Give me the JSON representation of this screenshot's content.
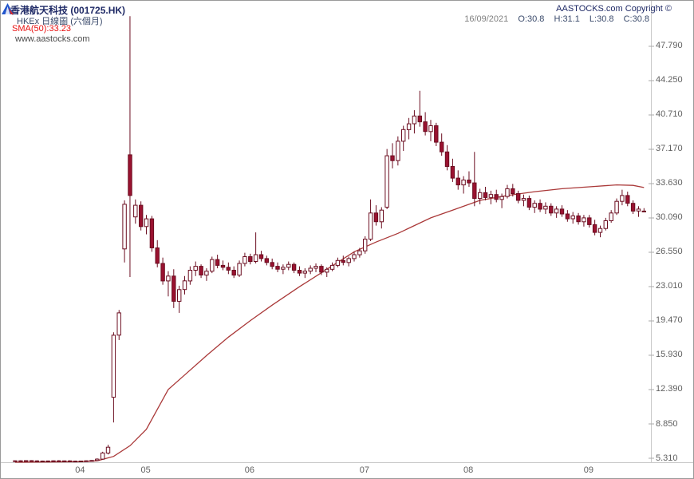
{
  "header": {
    "title": "香港航天科技 (001725.HK)",
    "subtitle": "HKEx 日線圖 (六個月)",
    "sma_label": "SMA(50):33.23",
    "watermark": "www.aastocks.com",
    "copyright": "AASTOCKS.com Copyright ©",
    "date": "16/09/2021",
    "ohlc": {
      "open": "O:30.8",
      "high": "H:31.1",
      "low": "L:30.8",
      "close": "C:30.8"
    }
  },
  "colors": {
    "up_fill": "#ffffff",
    "down_fill": "#9a1230",
    "outline": "#6b0d20",
    "sma_line": "#aa3939",
    "sma_label": "#e81010",
    "axis_text": "#5f5f5f",
    "plot_border": "#c9c9c9",
    "tick_mark": "#aaaaaa",
    "title_text": "#1f2a66"
  },
  "axes": {
    "y_ticks": [
      "47.790",
      "44.250",
      "40.710",
      "37.170",
      "33.630",
      "30.090",
      "26.550",
      "23.010",
      "19.470",
      "15.930",
      "12.390",
      "8.850",
      "5.310"
    ],
    "x_ticks": [
      {
        "label": "04",
        "index": 12
      },
      {
        "label": "05",
        "index": 24
      },
      {
        "label": "06",
        "index": 43
      },
      {
        "label": "07",
        "index": 64
      },
      {
        "label": "08",
        "index": 83
      },
      {
        "label": "09",
        "index": 105
      }
    ]
  },
  "chart_data": {
    "type": "candlestick",
    "title": "香港航天科技 (001725.HK)",
    "subtitle": "HKEx 日線圖 (六個月)",
    "indicator": {
      "name": "SMA(50)",
      "value": 33.23
    },
    "last_quote": {
      "date": "16/09/2021",
      "open": 30.8,
      "high": 31.1,
      "low": 30.8,
      "close": 30.8
    },
    "y_range": [
      4.9,
      50.9
    ],
    "y_tick_values": [
      47.79,
      44.25,
      40.71,
      37.17,
      33.63,
      30.09,
      26.55,
      23.01,
      19.47,
      15.93,
      12.39,
      8.85,
      5.31
    ],
    "x_month_starts": [
      {
        "month": "04",
        "index": 12
      },
      {
        "month": "05",
        "index": 24
      },
      {
        "month": "06",
        "index": 43
      },
      {
        "month": "07",
        "index": 64
      },
      {
        "month": "08",
        "index": 83
      },
      {
        "month": "09",
        "index": 105
      }
    ],
    "candles_ohlc": [
      [
        5.02,
        5.08,
        4.97,
        5.05
      ],
      [
        5.05,
        5.1,
        4.99,
        5.03
      ],
      [
        5.03,
        5.09,
        4.98,
        5.06
      ],
      [
        5.06,
        5.11,
        5.0,
        5.04
      ],
      [
        5.04,
        5.09,
        4.98,
        5.02
      ],
      [
        5.02,
        5.07,
        4.96,
        5.0
      ],
      [
        5.0,
        5.06,
        4.95,
        5.03
      ],
      [
        5.03,
        5.08,
        4.97,
        5.05
      ],
      [
        5.05,
        5.11,
        4.99,
        5.02
      ],
      [
        5.02,
        5.07,
        4.96,
        5.04
      ],
      [
        5.04,
        5.09,
        4.98,
        5.01
      ],
      [
        5.01,
        5.06,
        4.95,
        4.99
      ],
      [
        4.99,
        5.05,
        4.94,
        5.02
      ],
      [
        5.02,
        5.08,
        4.97,
        5.05
      ],
      [
        5.05,
        5.12,
        5.0,
        5.08
      ],
      [
        5.08,
        5.3,
        5.03,
        5.22
      ],
      [
        5.22,
        5.98,
        5.18,
        5.85
      ],
      [
        5.85,
        6.7,
        5.7,
        6.45
      ],
      [
        11.6,
        18.3,
        9.0,
        18.0
      ],
      [
        18.0,
        20.6,
        17.5,
        20.3
      ],
      [
        26.9,
        31.9,
        25.5,
        31.5
      ],
      [
        36.6,
        50.9,
        24.0,
        32.4
      ],
      [
        30.2,
        32.0,
        29.5,
        31.4
      ],
      [
        31.4,
        31.8,
        28.8,
        29.2
      ],
      [
        29.2,
        30.4,
        28.4,
        30.0
      ],
      [
        30.0,
        30.3,
        26.6,
        27.0
      ],
      [
        27.0,
        27.8,
        25.0,
        25.4
      ],
      [
        25.4,
        26.0,
        23.2,
        23.6
      ],
      [
        23.6,
        24.6,
        22.0,
        24.1
      ],
      [
        24.1,
        24.8,
        20.8,
        21.5
      ],
      [
        21.5,
        23.1,
        20.3,
        22.7
      ],
      [
        22.7,
        24.1,
        22.2,
        23.6
      ],
      [
        23.6,
        25.1,
        23.2,
        24.7
      ],
      [
        24.7,
        25.6,
        24.1,
        25.1
      ],
      [
        25.1,
        25.3,
        23.9,
        24.2
      ],
      [
        24.2,
        24.9,
        23.6,
        24.6
      ],
      [
        24.6,
        26.1,
        24.4,
        25.8
      ],
      [
        25.8,
        26.3,
        24.9,
        25.2
      ],
      [
        25.2,
        25.7,
        24.7,
        25.0
      ],
      [
        25.0,
        25.5,
        24.3,
        24.7
      ],
      [
        24.7,
        25.1,
        23.9,
        24.2
      ],
      [
        24.2,
        25.7,
        24.0,
        25.4
      ],
      [
        25.4,
        26.5,
        25.1,
        26.1
      ],
      [
        26.1,
        26.4,
        25.3,
        25.6
      ],
      [
        25.6,
        28.6,
        25.4,
        26.3
      ],
      [
        26.3,
        26.7,
        25.6,
        25.9
      ],
      [
        25.9,
        26.2,
        25.2,
        25.5
      ],
      [
        25.5,
        25.9,
        24.8,
        25.1
      ],
      [
        25.1,
        25.5,
        24.5,
        24.8
      ],
      [
        24.8,
        25.3,
        24.3,
        25.0
      ],
      [
        25.0,
        25.6,
        24.7,
        25.3
      ],
      [
        25.3,
        25.5,
        24.4,
        24.7
      ],
      [
        24.7,
        25.1,
        24.1,
        24.4
      ],
      [
        24.4,
        24.9,
        23.9,
        24.6
      ],
      [
        24.6,
        25.2,
        24.3,
        24.9
      ],
      [
        24.9,
        25.4,
        24.5,
        25.1
      ],
      [
        25.1,
        25.3,
        24.2,
        24.5
      ],
      [
        24.5,
        25.0,
        24.0,
        24.8
      ],
      [
        24.8,
        25.5,
        24.6,
        25.2
      ],
      [
        25.2,
        26.0,
        25.0,
        25.7
      ],
      [
        25.7,
        26.2,
        25.2,
        25.5
      ],
      [
        25.5,
        26.1,
        25.1,
        25.9
      ],
      [
        25.9,
        26.6,
        25.6,
        26.3
      ],
      [
        26.3,
        27.0,
        26.0,
        26.7
      ],
      [
        26.7,
        28.2,
        26.4,
        27.9
      ],
      [
        27.9,
        32.0,
        27.7,
        30.6
      ],
      [
        30.6,
        31.4,
        29.3,
        29.7
      ],
      [
        29.7,
        31.2,
        29.0,
        30.9
      ],
      [
        31.2,
        37.2,
        31.0,
        36.5
      ],
      [
        36.5,
        37.8,
        35.2,
        36.0
      ],
      [
        36.0,
        38.5,
        35.5,
        38.0
      ],
      [
        38.0,
        39.6,
        37.0,
        39.2
      ],
      [
        39.2,
        40.4,
        38.2,
        39.8
      ],
      [
        39.8,
        41.2,
        38.8,
        40.6
      ],
      [
        40.6,
        43.2,
        39.5,
        40.0
      ],
      [
        40.0,
        41.0,
        38.6,
        39.0
      ],
      [
        39.0,
        40.2,
        38.0,
        39.6
      ],
      [
        39.6,
        39.9,
        37.5,
        37.9
      ],
      [
        37.9,
        38.8,
        36.5,
        36.9
      ],
      [
        36.9,
        37.6,
        35.0,
        35.4
      ],
      [
        35.4,
        36.2,
        33.8,
        34.2
      ],
      [
        34.2,
        35.0,
        33.0,
        33.5
      ],
      [
        33.5,
        34.4,
        32.6,
        34.0
      ],
      [
        34.0,
        34.9,
        33.3,
        33.7
      ],
      [
        33.7,
        36.9,
        31.3,
        32.1
      ],
      [
        32.1,
        33.1,
        31.5,
        32.7
      ],
      [
        32.7,
        33.3,
        31.9,
        32.2
      ],
      [
        32.2,
        32.9,
        31.5,
        32.5
      ],
      [
        32.5,
        33.0,
        31.7,
        32.0
      ],
      [
        32.0,
        32.6,
        31.1,
        32.3
      ],
      [
        32.3,
        33.5,
        32.1,
        33.1
      ],
      [
        33.1,
        33.6,
        32.3,
        32.6
      ],
      [
        32.6,
        32.9,
        31.6,
        31.9
      ],
      [
        31.9,
        32.5,
        31.3,
        32.1
      ],
      [
        32.1,
        32.4,
        30.9,
        31.2
      ],
      [
        31.2,
        31.9,
        30.6,
        31.6
      ],
      [
        31.6,
        32.0,
        30.7,
        31.0
      ],
      [
        31.0,
        31.7,
        30.5,
        31.3
      ],
      [
        31.3,
        31.6,
        30.3,
        30.6
      ],
      [
        30.6,
        31.3,
        30.1,
        31.0
      ],
      [
        31.0,
        31.4,
        30.2,
        30.5
      ],
      [
        30.5,
        30.9,
        29.7,
        30.0
      ],
      [
        30.0,
        30.7,
        29.5,
        30.3
      ],
      [
        30.3,
        30.6,
        29.4,
        29.7
      ],
      [
        29.7,
        30.4,
        29.2,
        30.1
      ],
      [
        30.1,
        30.4,
        29.1,
        29.4
      ],
      [
        29.4,
        29.9,
        28.3,
        28.6
      ],
      [
        28.6,
        29.3,
        28.1,
        29.0
      ],
      [
        29.0,
        30.1,
        28.8,
        29.8
      ],
      [
        29.8,
        30.9,
        29.6,
        30.6
      ],
      [
        30.6,
        32.1,
        30.4,
        31.8
      ],
      [
        31.8,
        33.0,
        31.4,
        32.4
      ],
      [
        32.4,
        32.8,
        31.3,
        31.6
      ],
      [
        31.6,
        31.9,
        30.5,
        30.8
      ],
      [
        30.8,
        31.3,
        30.2,
        31.0
      ],
      [
        30.8,
        31.1,
        30.8,
        30.8
      ]
    ],
    "sma50_points": [
      [
        0,
        4.9
      ],
      [
        12,
        4.95
      ],
      [
        15,
        5.05
      ],
      [
        18,
        5.5
      ],
      [
        21,
        6.6
      ],
      [
        24,
        8.3
      ],
      [
        28,
        12.4
      ],
      [
        31,
        13.9
      ],
      [
        35,
        15.9
      ],
      [
        39,
        17.8
      ],
      [
        43,
        19.5
      ],
      [
        47,
        21.1
      ],
      [
        52,
        23.0
      ],
      [
        57,
        24.8
      ],
      [
        62,
        26.6
      ],
      [
        66,
        27.6
      ],
      [
        70,
        28.5
      ],
      [
        76,
        30.1
      ],
      [
        80,
        30.9
      ],
      [
        85,
        31.9
      ],
      [
        90,
        32.4
      ],
      [
        95,
        32.8
      ],
      [
        100,
        33.1
      ],
      [
        105,
        33.3
      ],
      [
        110,
        33.5
      ],
      [
        113,
        33.45
      ],
      [
        115,
        33.23
      ]
    ]
  }
}
